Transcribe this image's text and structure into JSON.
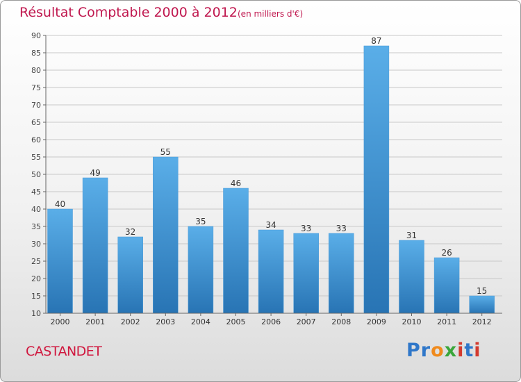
{
  "header": {
    "title": "Résultat Comptable 2000 à 2012",
    "unit": "(en milliers d'€)"
  },
  "footer": {
    "commune": "CASTANDET",
    "logo_text": "Proxiti"
  },
  "colors": {
    "title": "#c0184f",
    "bar_light": "#5aaee8",
    "bar_dark": "#2874b4",
    "grid": "#c8c8c8"
  },
  "chart_data": {
    "type": "bar",
    "title": "Résultat Comptable 2000 à 2012",
    "subtitle": "(en milliers d'€)",
    "xlabel": "",
    "ylabel": "",
    "categories": [
      "2000",
      "2001",
      "2002",
      "2003",
      "2004",
      "2005",
      "2006",
      "2007",
      "2008",
      "2009",
      "2010",
      "2011",
      "2012"
    ],
    "values": [
      40,
      49,
      32,
      55,
      35,
      46,
      34,
      33,
      33,
      87,
      31,
      26,
      15
    ],
    "ylim": [
      10,
      90
    ],
    "yticks": [
      10,
      15,
      20,
      25,
      30,
      35,
      40,
      45,
      50,
      55,
      60,
      65,
      70,
      75,
      80,
      85,
      90
    ],
    "grid": true,
    "legend": "none"
  }
}
